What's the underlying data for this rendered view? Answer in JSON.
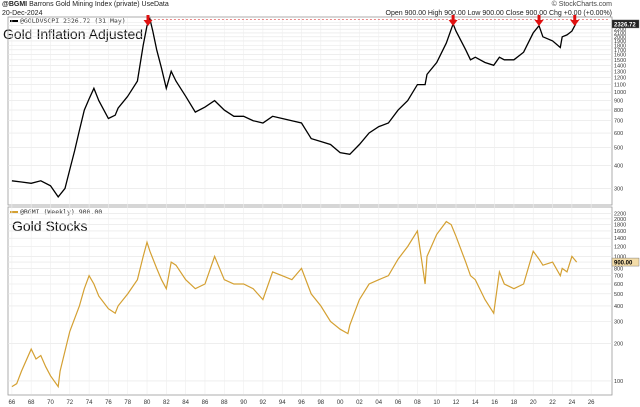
{
  "header": {
    "symbol": "@BGMI",
    "name": "Barrons Gold Mining Index (private)",
    "source": "UseData",
    "date": "20-Dec-2024",
    "ohlc": "Open 900.00  High 900.00  Low 900.00  Close 900.00  Chg +0.00 (+0.00%)",
    "credit": "© StockCharts.com"
  },
  "chart_data": [
    {
      "type": "line",
      "title": "Gold Inflation Adjusted",
      "legend": "@GOLDVSCPI 2326.72 (31 May)",
      "last_value_label": "2326.72",
      "color": "#000000",
      "scale": "log",
      "ylim": [
        250,
        2500
      ],
      "yticks": [
        300,
        400,
        500,
        600,
        700,
        800,
        900,
        1000,
        1100,
        1200,
        1300,
        1400,
        1500,
        1600,
        1700,
        1800,
        1900,
        2000,
        2100,
        2200,
        2300,
        2400
      ],
      "ytick_labels": [
        "300",
        "400",
        "500",
        "600",
        "700",
        "800",
        "900",
        "1000",
        "1100",
        "1200",
        "1300",
        "1400",
        "1500",
        "1600",
        "1700",
        "1800",
        "1900",
        "2000",
        "2100",
        "2200",
        "2300",
        "2400"
      ],
      "reference_line": 2480,
      "markers": [
        1980.1,
        2011.7,
        2020.6,
        2024.3
      ],
      "x": [
        1966,
        1967,
        1968,
        1969,
        1970,
        1970.8,
        1971.5,
        1972,
        1972.5,
        1973,
        1973.5,
        1974,
        1974.5,
        1975,
        1976,
        1976.7,
        1977,
        1978,
        1979,
        1979.6,
        1980,
        1980.3,
        1980.6,
        1981,
        1981.5,
        1982,
        1982.5,
        1983,
        1984,
        1985,
        1986,
        1987,
        1988,
        1989,
        1990,
        1991,
        1992,
        1993,
        1994,
        1995,
        1996,
        1997,
        1998,
        1999,
        2000,
        2001,
        2002,
        2003,
        2004,
        2005,
        2006,
        2007,
        2008,
        2008.8,
        2009,
        2010,
        2011,
        2011.7,
        2012,
        2013,
        2013.5,
        2014,
        2015,
        2015.9,
        2016.5,
        2017,
        2018,
        2019,
        2020,
        2020.6,
        2021,
        2022,
        2022.8,
        2023,
        2023.5,
        2024,
        2024.4
      ],
      "y": [
        330,
        325,
        320,
        330,
        310,
        270,
        300,
        380,
        480,
        620,
        800,
        920,
        1050,
        900,
        720,
        750,
        820,
        950,
        1150,
        1800,
        2300,
        2500,
        2150,
        1700,
        1350,
        1050,
        1300,
        1150,
        950,
        780,
        830,
        900,
        800,
        740,
        740,
        700,
        680,
        740,
        720,
        700,
        680,
        560,
        540,
        520,
        470,
        460,
        520,
        600,
        650,
        680,
        800,
        900,
        1100,
        1100,
        1250,
        1450,
        1850,
        2350,
        2150,
        1700,
        1500,
        1550,
        1450,
        1400,
        1550,
        1500,
        1500,
        1650,
        2100,
        2300,
        2000,
        1900,
        1750,
        2000,
        2050,
        2150,
        2350
      ]
    },
    {
      "type": "line",
      "title": "Gold Stocks",
      "legend": "@BGMI (Weekly) 900.00",
      "last_value_label": "900.00",
      "color": "#d4a032",
      "scale": "log",
      "ylim": [
        80,
        2400
      ],
      "yticks": [
        100,
        200,
        300,
        400,
        500,
        600,
        700,
        800,
        900,
        1000,
        1200,
        1400,
        1600,
        1800,
        2000,
        2200
      ],
      "ytick_labels": [
        "100",
        "200",
        "300",
        "400",
        "500",
        "600",
        "700",
        "800",
        "900",
        "1000",
        "1200",
        "1400",
        "1600",
        "1800",
        "2000",
        "2200"
      ],
      "x": [
        1966,
        1966.5,
        1967,
        1968,
        1968.5,
        1969,
        1969.5,
        1970,
        1970.8,
        1971,
        1972,
        1973,
        1973.5,
        1974,
        1974.5,
        1975,
        1976,
        1976.7,
        1977,
        1978,
        1979,
        1979.6,
        1980,
        1980.3,
        1981,
        1981.5,
        1982,
        1982.5,
        1983,
        1984,
        1985,
        1986,
        1987,
        1988,
        1989,
        1990,
        1991,
        1992,
        1993,
        1994,
        1995,
        1996,
        1997,
        1998,
        1999,
        2000,
        2000.8,
        2001,
        2002,
        2003,
        2004,
        2005,
        2006,
        2007,
        2008,
        2008.8,
        2009,
        2010,
        2011,
        2011.5,
        2012,
        2013,
        2013.5,
        2014,
        2015,
        2015.9,
        2016.5,
        2017,
        2018,
        2019,
        2020,
        2020.6,
        2021,
        2022,
        2022.8,
        2023,
        2023.5,
        2024,
        2024.5
      ],
      "y": [
        90,
        95,
        120,
        180,
        150,
        160,
        130,
        110,
        90,
        120,
        250,
        400,
        550,
        700,
        600,
        480,
        380,
        350,
        400,
        500,
        650,
        1000,
        1300,
        1100,
        800,
        650,
        550,
        900,
        850,
        650,
        550,
        600,
        1000,
        650,
        600,
        600,
        550,
        450,
        750,
        700,
        650,
        800,
        500,
        400,
        300,
        260,
        240,
        280,
        450,
        600,
        650,
        700,
        950,
        1200,
        1600,
        600,
        1000,
        1500,
        1900,
        1800,
        1450,
        900,
        700,
        650,
        450,
        350,
        750,
        600,
        550,
        600,
        1100,
        950,
        850,
        900,
        700,
        800,
        750,
        1000,
        900
      ]
    }
  ],
  "x_axis": {
    "ticks": [
      1966,
      1968,
      1970,
      1972,
      1974,
      1976,
      1978,
      1980,
      1982,
      1984,
      1986,
      1988,
      1990,
      1992,
      1994,
      1996,
      1998,
      2000,
      2002,
      2004,
      2006,
      2008,
      2010,
      2012,
      2014,
      2016,
      2018,
      2020,
      2022,
      2024,
      2026
    ],
    "labels": [
      "66",
      "68",
      "70",
      "72",
      "74",
      "76",
      "78",
      "80",
      "82",
      "84",
      "86",
      "88",
      "90",
      "92",
      "94",
      "96",
      "98",
      "00",
      "02",
      "04",
      "06",
      "08",
      "10",
      "12",
      "14",
      "16",
      "18",
      "20",
      "22",
      "24",
      "26"
    ],
    "range": [
      1965.6,
      2026.5
    ]
  }
}
